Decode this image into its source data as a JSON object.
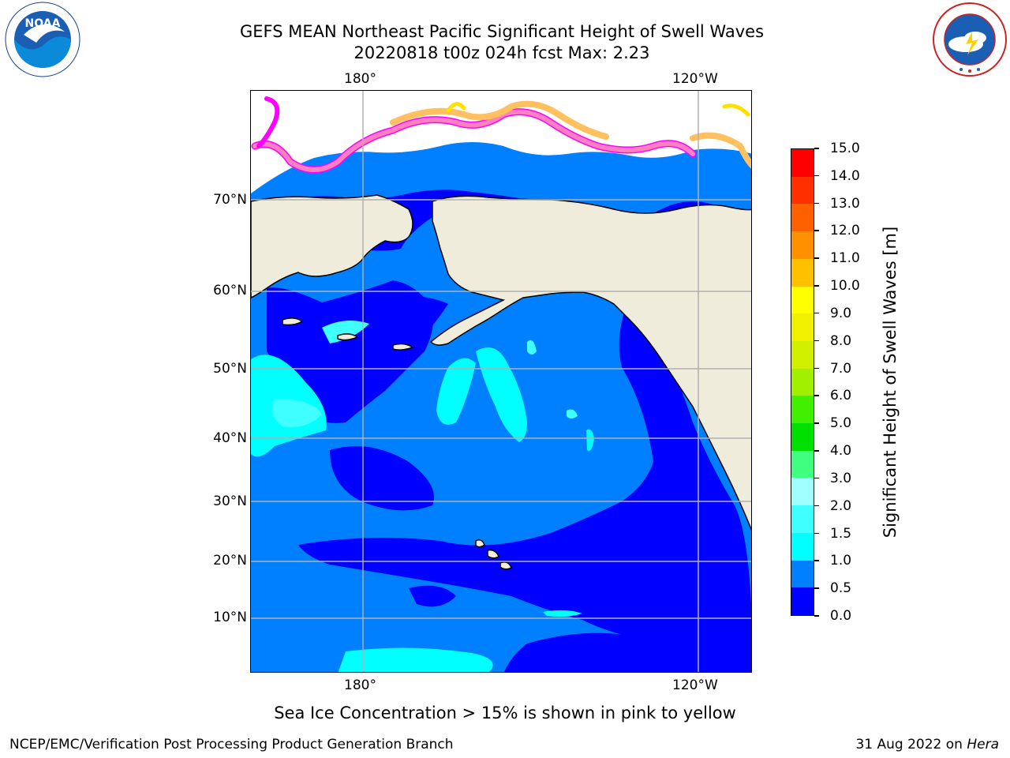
{
  "header": {
    "title_line1": "GEFS MEAN Northeast Pacific Significant Height of Swell Waves",
    "title_line2": "20220818 t00z 024h fcst   Max: 2.23"
  },
  "logos": {
    "left": "NOAA",
    "left_ring_text": "NATIONAL OCEANIC AND ATMOSPHERIC ADMINISTRATION · U.S. DEPARTMENT OF COMMERCE",
    "right_ring_text": "NATIONAL WEATHER SERVICE"
  },
  "map": {
    "lon_labels_top": [
      "180°",
      "120°W"
    ],
    "lon_labels_bottom": [
      "180°",
      "120°W"
    ],
    "lat_labels": [
      "70°N",
      "60°N",
      "50°N",
      "40°N",
      "30°N",
      "20°N",
      "10°N"
    ],
    "land_color": "#efecdc",
    "ocean_base_color": "#0080ff",
    "low_swell_color": "#0000ff",
    "sea_ice_colors": [
      "#ff00ff",
      "#ff80c0",
      "#ffc060",
      "#ffe000"
    ]
  },
  "colorbar": {
    "label": "Significant Height of Swell Waves [m]",
    "ticks": [
      "0.0",
      "0.5",
      "1.0",
      "1.5",
      "2.0",
      "3.0",
      "4.0",
      "5.0",
      "6.0",
      "7.0",
      "8.0",
      "9.0",
      "10.0",
      "11.0",
      "12.0",
      "13.0",
      "14.0",
      "15.0"
    ],
    "colors": [
      "#0000ff",
      "#0080ff",
      "#00ffff",
      "#40ffff",
      "#a0ffff",
      "#40ff80",
      "#00e000",
      "#40f000",
      "#a0f000",
      "#d0f000",
      "#f0f000",
      "#ffff00",
      "#ffc000",
      "#ff9000",
      "#ff6000",
      "#ff3000",
      "#ff0000"
    ]
  },
  "caption": "Sea Ice Concentration > 15% is shown in pink to yellow",
  "footer": {
    "left": "NCEP/EMC/Verification Post Processing Product Generation Branch",
    "right_date": "31 Aug 2022 on ",
    "right_host": "Hera"
  }
}
